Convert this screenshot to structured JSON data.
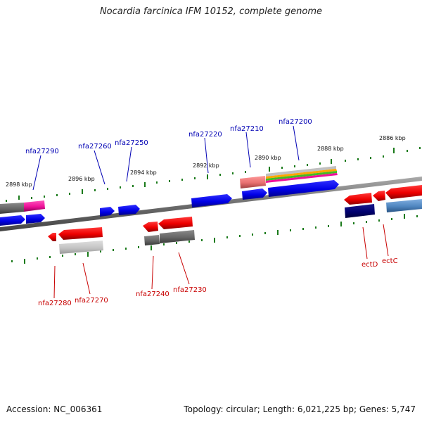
{
  "title": "Nocardia farcinica IFM 10152, complete genome",
  "footer": {
    "accession": "Accession: NC_006361",
    "topology": "Topology: circular; Length: 6,021,225 bp; Genes: 5,747"
  },
  "kbp_labels": [
    "2898 kbp",
    "2896 kbp",
    "2894 kbp",
    "2892 kbp",
    "2890 kbp",
    "2888 kbp",
    "2886 kbp"
  ],
  "top_genes": [
    "nfa27290",
    "nfa27260",
    "nfa27250",
    "nfa27220",
    "nfa27210",
    "nfa27200"
  ],
  "bottom_genes": [
    "nfa27280",
    "nfa27270",
    "nfa27240",
    "nfa27230",
    "ectD",
    "ectC"
  ],
  "colors": {
    "forward_gene": "#0000ee",
    "reverse_gene": "#ee0000",
    "top_label": "#0000b4",
    "bottom_label": "#c80000",
    "tick": "#1a7a1a",
    "backbone": "#7a7a7a"
  }
}
